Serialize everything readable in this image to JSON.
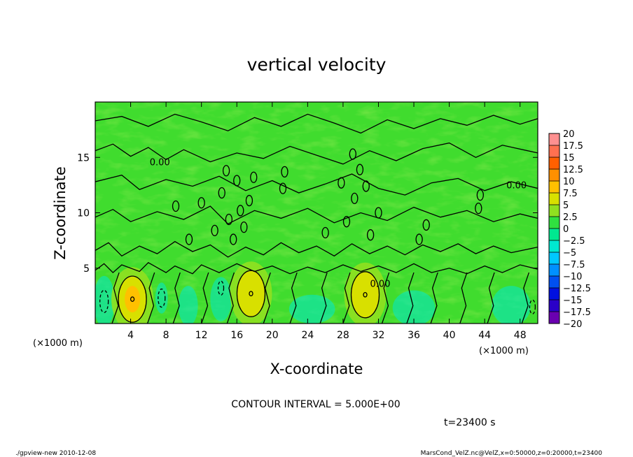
{
  "chart_data": {
    "type": "heatmap",
    "subtype": "contour",
    "title": "vertical velocity",
    "xlabel": "X-coordinate",
    "ylabel": "Z-coordinate",
    "x_unit_label": "(×1000 m)",
    "y_unit_label": "(×1000 m)",
    "xlim": [
      0,
      50
    ],
    "ylim": [
      0,
      20
    ],
    "x_ticks": [
      4,
      8,
      12,
      16,
      20,
      24,
      28,
      32,
      36,
      40,
      44,
      48
    ],
    "y_ticks": [
      5,
      10,
      15
    ],
    "contour_interval_text": "CONTOUR INTERVAL = 5.000E+00",
    "contour_labels": [
      "0.00",
      "0.00",
      "0.00"
    ],
    "colorbar": {
      "levels": [
        -20,
        -17.5,
        -15,
        -12.5,
        -10,
        -7.5,
        -5,
        -2.5,
        0,
        2.5,
        5,
        7.5,
        10,
        12.5,
        15,
        17.5,
        20
      ],
      "tick_labels": [
        "20",
        "17.5",
        "15",
        "12.5",
        "10",
        "7.5",
        "5",
        "2.5",
        "0",
        "−2.5",
        "−5",
        "−7.5",
        "−10",
        "−12.5",
        "−15",
        "−17.5",
        "−20"
      ],
      "colors": [
        "#6a00b0",
        "#2a00c8",
        "#0010e0",
        "#0050f0",
        "#0090ff",
        "#00c8ff",
        "#00e8d0",
        "#00e890",
        "#30e040",
        "#90e020",
        "#d8e000",
        "#ffc000",
        "#ff9000",
        "#ff6000",
        "#ff7050",
        "#ff9090"
      ]
    },
    "updrafts": [
      {
        "x": 4.2,
        "z": 2.2,
        "peak": 9
      },
      {
        "x": 17.6,
        "z": 2.7,
        "peak": 7
      },
      {
        "x": 30.5,
        "z": 2.6,
        "peak": 7
      }
    ]
  },
  "time_label": "t=23400 s",
  "footer": {
    "left": "./gpview-new  2010-12-08",
    "right": "MarsCond_VelZ.nc@VelZ,x=0:50000,z=0:20000,t=23400"
  }
}
